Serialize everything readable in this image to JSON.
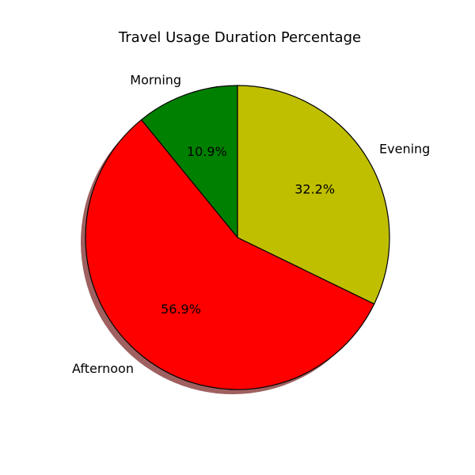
{
  "chart_data": {
    "type": "pie",
    "title": "Travel Usage Duration Percentage",
    "slices": [
      {
        "label": "Morning",
        "value": 10.9,
        "pct_label": "10.9%",
        "color": "#008000"
      },
      {
        "label": "Afternoon",
        "value": 56.9,
        "pct_label": "56.9%",
        "color": "#ff0000"
      },
      {
        "label": "Evening",
        "value": 32.2,
        "pct_label": "32.2%",
        "color": "#bfbf00"
      }
    ],
    "start_angle_deg": 90,
    "direction": "counterclockwise",
    "shadow": true,
    "edge_color": "#000000",
    "shadow_color": "#a06060",
    "legend": "none"
  }
}
